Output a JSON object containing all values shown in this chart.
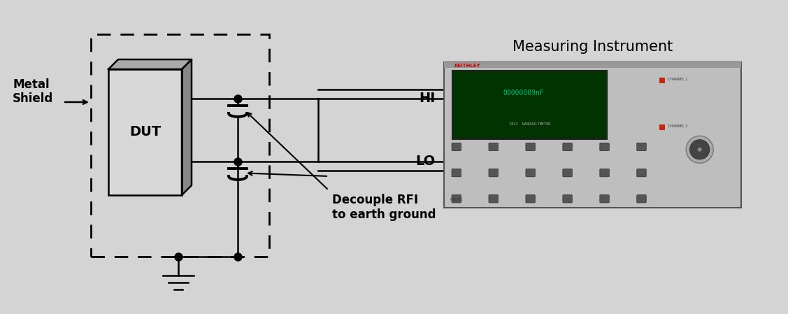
{
  "bg_color": "#d4d4d4",
  "title": "Measuring Instrument",
  "figsize": [
    11.27,
    4.49
  ],
  "dpi": 100,
  "label_metal_shield": "Metal\nShield",
  "label_dut": "DUT",
  "label_hi": "HI",
  "label_lo": "LO",
  "label_decouple": "Decouple RFI\nto earth ground",
  "line_color": "#000000",
  "dut_face": "#d8d8d8",
  "dut_top": "#aaaaaa",
  "dut_side": "#888888",
  "instrument_fill": "#bebebe",
  "display_fill": "#003300",
  "display_text": "#00bb77",
  "keithley_red": "#cc0000",
  "btn_color": "#555555",
  "knob_color": "#444444"
}
